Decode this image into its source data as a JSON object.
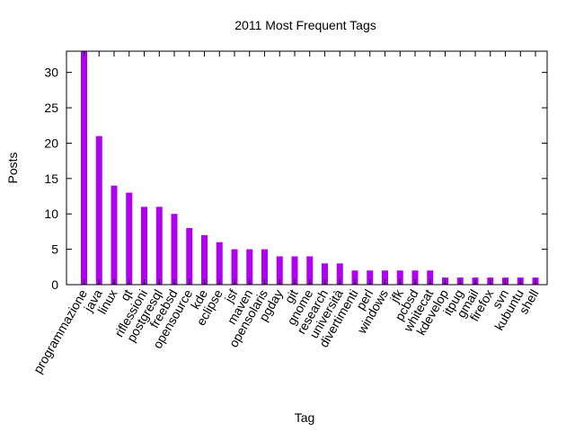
{
  "chart_data": {
    "type": "bar",
    "title": "2011 Most Frequent Tags",
    "xlabel": "Tag",
    "ylabel": "Posts",
    "ylim": [
      0,
      33
    ],
    "yticks": [
      0,
      5,
      10,
      15,
      20,
      25,
      30
    ],
    "grid": false,
    "bar_color": "#b000f0",
    "categories": [
      "programmazione",
      "java",
      "linux",
      "qt",
      "riflessioni",
      "postgresql",
      "freebsd",
      "opensource",
      "kde",
      "eclipse",
      "jsf",
      "maven",
      "opensolaris",
      "pgday",
      "git",
      "gnome",
      "research",
      "università",
      "divertimenti",
      "perl",
      "windows",
      "jfk",
      "pcbsd",
      "whitecat",
      "kdevelop",
      "itpug",
      "gmail",
      "firefox",
      "svn",
      "kubuntu",
      "shell"
    ],
    "values": [
      33,
      21,
      14,
      13,
      11,
      11,
      10,
      8,
      7,
      6,
      5,
      5,
      5,
      4,
      4,
      4,
      3,
      3,
      2,
      2,
      2,
      2,
      2,
      2,
      1,
      1,
      1,
      1,
      1,
      1,
      1
    ]
  }
}
